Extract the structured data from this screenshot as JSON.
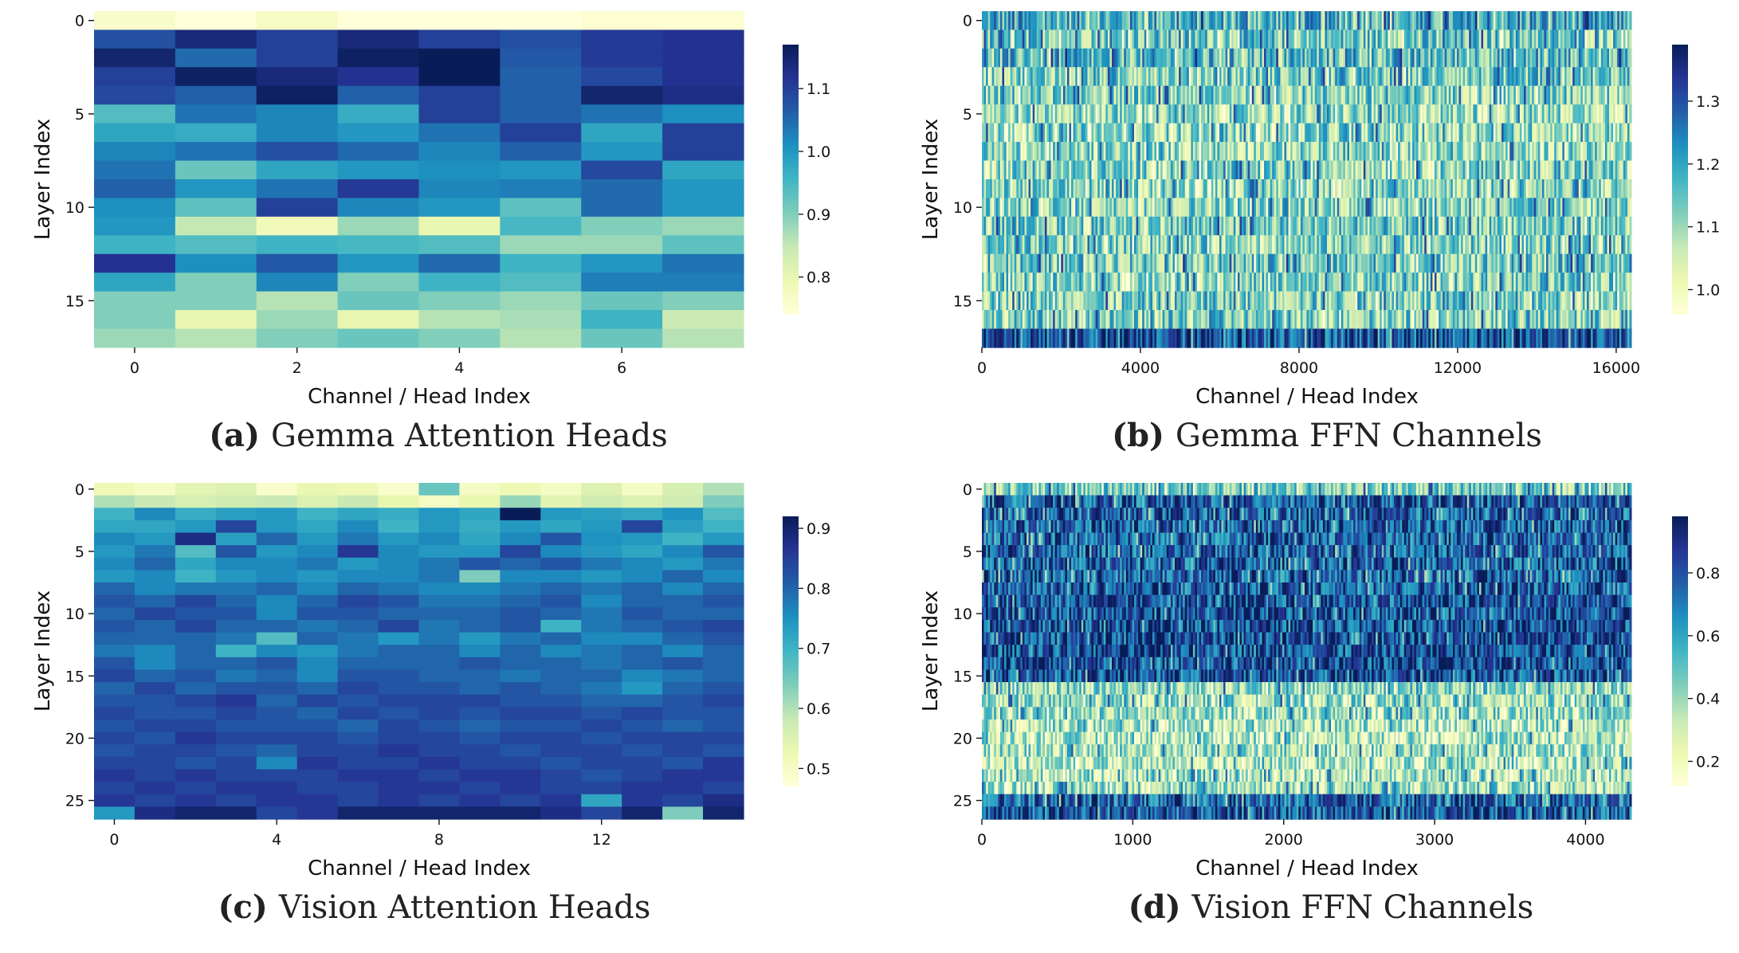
{
  "colormap": "YlGnBu",
  "xlabel": "Channel / Head Index",
  "ylabel": "Layer Index",
  "panels": [
    {
      "caption_tag": "(a)",
      "caption_text": "Gemma Attention Heads",
      "chart_data": {
        "type": "heatmap",
        "title": "Gemma Attention Heads",
        "xlabel": "Channel / Head Index",
        "ylabel": "Layer Index",
        "n_rows": 18,
        "n_cols": 8,
        "x_ticks": [
          0,
          2,
          4,
          6
        ],
        "y_ticks": [
          0,
          5,
          10,
          15
        ],
        "vmin": 0.74,
        "vmax": 1.17,
        "colorbar_ticks": [
          0.8,
          0.9,
          1.0,
          1.1
        ],
        "values": [
          [
            0.76,
            0.74,
            0.77,
            0.74,
            0.74,
            0.74,
            0.75,
            0.75
          ],
          [
            1.08,
            1.14,
            1.1,
            1.14,
            1.1,
            1.08,
            1.11,
            1.12
          ],
          [
            1.15,
            1.05,
            1.1,
            1.16,
            1.17,
            1.07,
            1.11,
            1.12
          ],
          [
            1.1,
            1.16,
            1.14,
            1.12,
            1.17,
            1.06,
            1.09,
            1.12
          ],
          [
            1.09,
            1.06,
            1.16,
            1.06,
            1.1,
            1.06,
            1.15,
            1.13
          ],
          [
            0.94,
            1.04,
            1.02,
            0.97,
            1.1,
            1.06,
            1.04,
            1.01
          ],
          [
            0.98,
            0.97,
            1.02,
            1.0,
            1.04,
            1.1,
            0.98,
            1.1
          ],
          [
            1.02,
            1.04,
            1.08,
            1.05,
            1.02,
            1.06,
            1.0,
            1.1
          ],
          [
            1.04,
            0.92,
            0.98,
            1.0,
            1.01,
            1.0,
            1.09,
            0.98
          ],
          [
            1.06,
            1.0,
            1.04,
            1.11,
            1.02,
            1.03,
            1.05,
            1.0
          ],
          [
            1.01,
            0.93,
            1.1,
            1.02,
            1.0,
            0.93,
            1.05,
            1.0
          ],
          [
            1.0,
            0.85,
            0.78,
            0.88,
            0.8,
            0.95,
            0.9,
            0.88
          ],
          [
            0.96,
            0.94,
            0.96,
            0.95,
            0.94,
            0.88,
            0.88,
            0.93
          ],
          [
            1.12,
            1.01,
            1.07,
            1.0,
            1.05,
            0.96,
            1.0,
            1.04
          ],
          [
            0.98,
            0.9,
            1.02,
            0.9,
            0.96,
            0.94,
            1.03,
            1.03
          ],
          [
            0.9,
            0.9,
            0.86,
            0.92,
            0.9,
            0.88,
            0.92,
            0.9
          ],
          [
            0.9,
            0.8,
            0.88,
            0.8,
            0.86,
            0.87,
            0.96,
            0.84
          ],
          [
            0.88,
            0.86,
            0.9,
            0.92,
            0.9,
            0.86,
            0.92,
            0.86
          ]
        ]
      }
    },
    {
      "caption_tag": "(b)",
      "caption_text": "Gemma FFN Channels",
      "chart_data": {
        "type": "heatmap",
        "title": "Gemma FFN Channels",
        "xlabel": "Channel / Head Index",
        "ylabel": "Layer Index",
        "n_rows": 18,
        "n_cols": 16384,
        "x_ticks": [
          0,
          4000,
          8000,
          12000,
          16000
        ],
        "y_ticks": [
          0,
          5,
          10,
          15
        ],
        "vmin": 0.96,
        "vmax": 1.39,
        "colorbar_ticks": [
          1.0,
          1.1,
          1.2,
          1.3
        ],
        "row_means": [
          1.18,
          1.14,
          1.16,
          1.13,
          1.12,
          1.1,
          1.11,
          1.1,
          1.12,
          1.11,
          1.12,
          1.13,
          1.12,
          1.14,
          1.12,
          1.13,
          1.12,
          1.3
        ]
      }
    },
    {
      "caption_tag": "(c)",
      "caption_text": "Vision Attention Heads",
      "chart_data": {
        "type": "heatmap",
        "title": "Vision Attention Heads",
        "xlabel": "Channel / Head Index",
        "ylabel": "Layer Index",
        "n_rows": 27,
        "n_cols": 16,
        "x_ticks": [
          0,
          4,
          8,
          12
        ],
        "y_ticks": [
          0,
          5,
          10,
          15,
          20,
          25
        ],
        "vmin": 0.47,
        "vmax": 0.92,
        "colorbar_ticks": [
          0.5,
          0.6,
          0.7,
          0.8,
          0.9
        ],
        "values": [
          [
            0.52,
            0.5,
            0.54,
            0.55,
            0.49,
            0.53,
            0.52,
            0.49,
            0.66,
            0.5,
            0.52,
            0.5,
            0.55,
            0.5,
            0.56,
            0.6
          ],
          [
            0.6,
            0.58,
            0.56,
            0.57,
            0.58,
            0.55,
            0.58,
            0.53,
            0.5,
            0.53,
            0.62,
            0.54,
            0.57,
            0.55,
            0.57,
            0.64
          ],
          [
            0.7,
            0.76,
            0.71,
            0.73,
            0.74,
            0.7,
            0.72,
            0.71,
            0.74,
            0.72,
            0.92,
            0.74,
            0.73,
            0.72,
            0.75,
            0.68
          ],
          [
            0.72,
            0.72,
            0.74,
            0.84,
            0.74,
            0.72,
            0.76,
            0.7,
            0.74,
            0.71,
            0.74,
            0.72,
            0.74,
            0.84,
            0.73,
            0.7
          ],
          [
            0.76,
            0.74,
            0.88,
            0.73,
            0.8,
            0.74,
            0.78,
            0.74,
            0.76,
            0.72,
            0.76,
            0.82,
            0.75,
            0.74,
            0.7,
            0.74
          ],
          [
            0.74,
            0.78,
            0.68,
            0.82,
            0.74,
            0.76,
            0.86,
            0.76,
            0.74,
            0.74,
            0.84,
            0.76,
            0.74,
            0.72,
            0.76,
            0.82
          ],
          [
            0.76,
            0.8,
            0.72,
            0.76,
            0.76,
            0.78,
            0.74,
            0.76,
            0.78,
            0.82,
            0.8,
            0.82,
            0.78,
            0.76,
            0.74,
            0.78
          ],
          [
            0.74,
            0.76,
            0.7,
            0.74,
            0.76,
            0.74,
            0.76,
            0.76,
            0.78,
            0.64,
            0.76,
            0.76,
            0.74,
            0.76,
            0.8,
            0.76
          ],
          [
            0.8,
            0.76,
            0.78,
            0.78,
            0.8,
            0.76,
            0.8,
            0.78,
            0.76,
            0.76,
            0.78,
            0.8,
            0.78,
            0.8,
            0.76,
            0.8
          ],
          [
            0.82,
            0.8,
            0.84,
            0.8,
            0.76,
            0.8,
            0.84,
            0.82,
            0.78,
            0.78,
            0.8,
            0.82,
            0.76,
            0.8,
            0.8,
            0.82
          ],
          [
            0.8,
            0.84,
            0.82,
            0.82,
            0.76,
            0.82,
            0.82,
            0.8,
            0.8,
            0.8,
            0.82,
            0.8,
            0.78,
            0.82,
            0.8,
            0.8
          ],
          [
            0.82,
            0.8,
            0.84,
            0.8,
            0.8,
            0.78,
            0.8,
            0.84,
            0.78,
            0.8,
            0.82,
            0.7,
            0.78,
            0.8,
            0.82,
            0.84
          ],
          [
            0.8,
            0.8,
            0.8,
            0.78,
            0.68,
            0.8,
            0.78,
            0.74,
            0.78,
            0.74,
            0.78,
            0.8,
            0.76,
            0.76,
            0.8,
            0.82
          ],
          [
            0.78,
            0.76,
            0.8,
            0.7,
            0.76,
            0.74,
            0.78,
            0.8,
            0.8,
            0.76,
            0.8,
            0.76,
            0.78,
            0.8,
            0.76,
            0.8
          ],
          [
            0.82,
            0.76,
            0.8,
            0.8,
            0.82,
            0.76,
            0.8,
            0.8,
            0.8,
            0.82,
            0.8,
            0.8,
            0.78,
            0.8,
            0.82,
            0.8
          ],
          [
            0.84,
            0.8,
            0.82,
            0.78,
            0.8,
            0.76,
            0.82,
            0.82,
            0.8,
            0.8,
            0.78,
            0.8,
            0.8,
            0.76,
            0.78,
            0.8
          ],
          [
            0.8,
            0.84,
            0.8,
            0.82,
            0.82,
            0.8,
            0.84,
            0.82,
            0.82,
            0.8,
            0.82,
            0.8,
            0.78,
            0.74,
            0.8,
            0.82
          ],
          [
            0.82,
            0.82,
            0.84,
            0.86,
            0.8,
            0.84,
            0.82,
            0.84,
            0.84,
            0.84,
            0.82,
            0.82,
            0.8,
            0.8,
            0.82,
            0.84
          ],
          [
            0.84,
            0.82,
            0.82,
            0.84,
            0.82,
            0.8,
            0.84,
            0.82,
            0.84,
            0.82,
            0.84,
            0.84,
            0.82,
            0.84,
            0.82,
            0.82
          ],
          [
            0.82,
            0.84,
            0.84,
            0.82,
            0.82,
            0.82,
            0.8,
            0.84,
            0.82,
            0.8,
            0.82,
            0.82,
            0.84,
            0.82,
            0.8,
            0.82
          ],
          [
            0.84,
            0.82,
            0.86,
            0.84,
            0.84,
            0.84,
            0.82,
            0.84,
            0.84,
            0.82,
            0.84,
            0.84,
            0.82,
            0.84,
            0.84,
            0.84
          ],
          [
            0.82,
            0.84,
            0.84,
            0.82,
            0.8,
            0.84,
            0.84,
            0.86,
            0.84,
            0.84,
            0.82,
            0.84,
            0.84,
            0.82,
            0.84,
            0.82
          ],
          [
            0.84,
            0.84,
            0.82,
            0.84,
            0.76,
            0.86,
            0.84,
            0.84,
            0.86,
            0.84,
            0.84,
            0.82,
            0.84,
            0.84,
            0.82,
            0.86
          ],
          [
            0.86,
            0.84,
            0.86,
            0.84,
            0.84,
            0.84,
            0.86,
            0.86,
            0.84,
            0.86,
            0.86,
            0.84,
            0.82,
            0.84,
            0.86,
            0.86
          ],
          [
            0.84,
            0.86,
            0.84,
            0.86,
            0.86,
            0.84,
            0.84,
            0.86,
            0.86,
            0.84,
            0.86,
            0.84,
            0.84,
            0.86,
            0.86,
            0.84
          ],
          [
            0.86,
            0.84,
            0.86,
            0.84,
            0.86,
            0.86,
            0.84,
            0.86,
            0.84,
            0.86,
            0.84,
            0.86,
            0.72,
            0.86,
            0.84,
            0.88
          ],
          [
            0.74,
            0.88,
            0.9,
            0.9,
            0.84,
            0.86,
            0.9,
            0.9,
            0.9,
            0.9,
            0.9,
            0.88,
            0.84,
            0.9,
            0.64,
            0.9
          ]
        ]
      }
    },
    {
      "caption_tag": "(d)",
      "caption_text": "Vision FFN Channels",
      "chart_data": {
        "type": "heatmap",
        "title": "Vision FFN Channels",
        "xlabel": "Channel / Head Index",
        "ylabel": "Layer Index",
        "n_rows": 27,
        "n_cols": 4304,
        "x_ticks": [
          0,
          1000,
          2000,
          3000,
          4000
        ],
        "y_ticks": [
          0,
          5,
          10,
          15,
          20,
          25
        ],
        "vmin": 0.12,
        "vmax": 0.98,
        "colorbar_ticks": [
          0.2,
          0.4,
          0.6,
          0.8
        ],
        "row_means": [
          0.45,
          0.78,
          0.75,
          0.77,
          0.76,
          0.75,
          0.76,
          0.75,
          0.78,
          0.8,
          0.8,
          0.82,
          0.83,
          0.83,
          0.82,
          0.8,
          0.42,
          0.4,
          0.38,
          0.36,
          0.35,
          0.38,
          0.34,
          0.36,
          0.4,
          0.75,
          0.78
        ]
      }
    }
  ]
}
